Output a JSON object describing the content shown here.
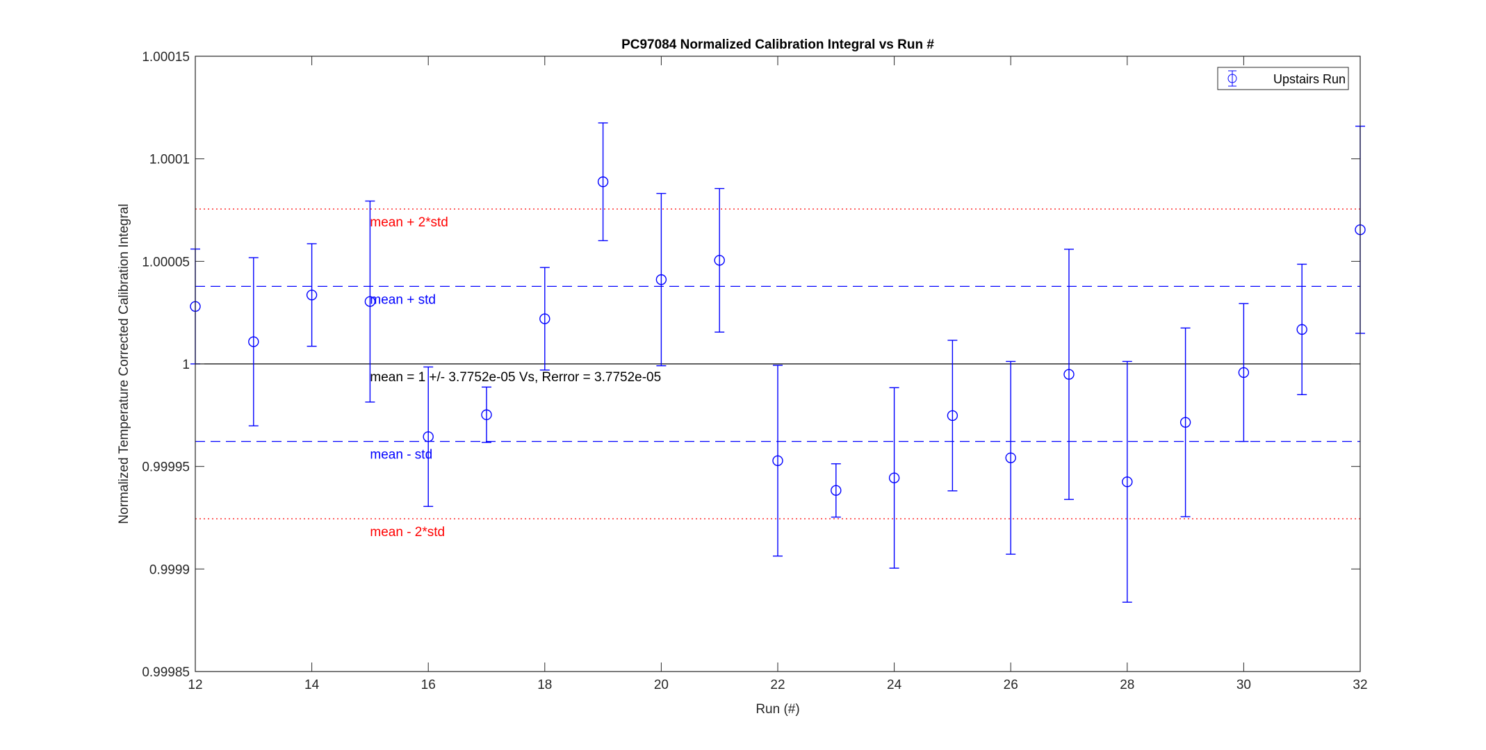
{
  "chart_data": {
    "type": "scatter",
    "title": "PC97084 Normalized Calibration Integral vs Run #",
    "xlabel": "Run (#)",
    "ylabel": "Normalized Temperature Corrected Calibration Integral",
    "xlim": [
      12,
      32
    ],
    "ylim": [
      0.99985,
      1.00015
    ],
    "xticks": [
      12,
      14,
      16,
      18,
      20,
      22,
      24,
      26,
      28,
      30,
      32
    ],
    "yticks": [
      0.99985,
      0.9999,
      0.99995,
      1,
      1.00005,
      1.0001,
      1.00015
    ],
    "ytick_labels": [
      "0.99985",
      "0.9999",
      "0.99995",
      "1",
      "1.00005",
      "1.0001",
      "1.00015"
    ],
    "grid": false,
    "legend": {
      "position": "top-right",
      "entries": [
        "Upstairs Run"
      ]
    },
    "series": [
      {
        "name": "Upstairs Run",
        "color": "#0000ff",
        "marker": "circle",
        "x": [
          12,
          13,
          14,
          15,
          16,
          17,
          18,
          19,
          20,
          21,
          22,
          23,
          24,
          25,
          26,
          27,
          28,
          29,
          30,
          31,
          32
        ],
        "y": [
          1.000028,
          1.0000108,
          1.0000336,
          1.0000304,
          0.9999645,
          0.9999752,
          1.000022,
          1.0000888,
          1.0000411,
          1.0000505,
          0.9999528,
          0.9999383,
          0.9999444,
          0.9999748,
          0.9999542,
          0.9999949,
          0.9999425,
          0.9999715,
          0.9999958,
          1.0000168,
          1.0000654
        ],
        "err": [
          2.8e-05,
          4.1e-05,
          2.5e-05,
          4.9e-05,
          3.4e-05,
          1.35e-05,
          2.5e-05,
          2.87e-05,
          4.2e-05,
          3.5e-05,
          4.65e-05,
          1.3e-05,
          4.4e-05,
          3.67e-05,
          4.7e-05,
          6.1e-05,
          5.87e-05,
          4.6e-05,
          3.36e-05,
          3.18e-05,
          5.05e-05
        ]
      }
    ],
    "reference_lines": [
      {
        "label": "mean + 2*std",
        "y": 1.0000755,
        "color": "#ff0000",
        "style": "dotted"
      },
      {
        "label": "mean + std",
        "y": 1.0000378,
        "color": "#0000ff",
        "style": "dashed"
      },
      {
        "label": "mean = 1 +/- 3.7752e-05 Vs, Rerror = 3.7752e-05",
        "y": 1,
        "color": "#000000",
        "style": "solid"
      },
      {
        "label": "mean - std",
        "y": 0.9999622,
        "color": "#0000ff",
        "style": "dashed"
      },
      {
        "label": "mean - 2*std",
        "y": 0.9999245,
        "color": "#ff0000",
        "style": "dotted"
      }
    ],
    "annotation_x": 15
  }
}
